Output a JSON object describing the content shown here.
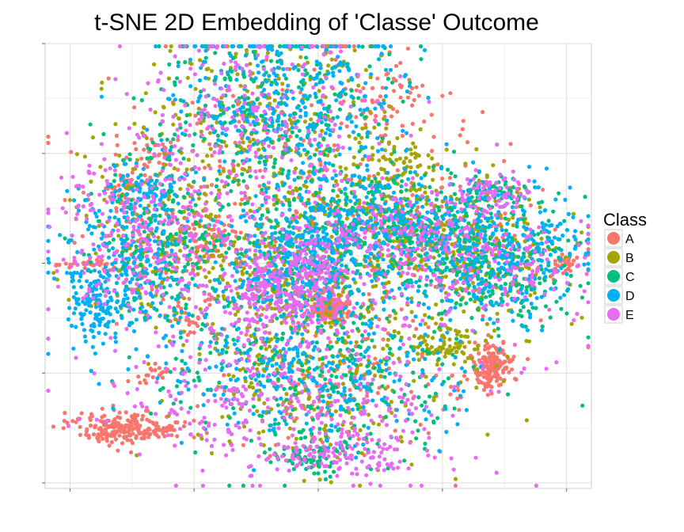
{
  "chart_data": {
    "type": "scatter",
    "title": "t-SNE 2D Embedding of 'Classe' Outcome",
    "xlabel": "",
    "ylabel": "",
    "xlim": [
      -44,
      44
    ],
    "ylim": [
      -41,
      40
    ],
    "x_major_ticks": [
      -40,
      -20,
      0,
      20,
      40
    ],
    "y_major_ticks": [
      -40,
      -20,
      0,
      20,
      40
    ],
    "grid": true,
    "legend": {
      "title": "Class",
      "position": "right",
      "entries": [
        {
          "label": "A",
          "color": "#F8766D"
        },
        {
          "label": "B",
          "color": "#A3A500"
        },
        {
          "label": "C",
          "color": "#00BF7D"
        },
        {
          "label": "D",
          "color": "#00B0F6"
        },
        {
          "label": "E",
          "color": "#E76BF3"
        }
      ]
    },
    "series": [
      {
        "name": "A",
        "color": "#F8766D",
        "clusters": [
          {
            "cx": -31,
            "cy": -30,
            "sx": 4.0,
            "sy": 1.5,
            "n": 220
          },
          {
            "cx": 2,
            "cy": -8,
            "sx": 1.4,
            "sy": 1.2,
            "n": 180
          },
          {
            "cx": 28,
            "cy": -19,
            "sx": 1.4,
            "sy": 2.0,
            "n": 150
          },
          {
            "cx": -38,
            "cy": 0,
            "sx": 2.0,
            "sy": 0.4,
            "n": 30
          },
          {
            "cx": 40,
            "cy": 0,
            "sx": 1.0,
            "sy": 1.0,
            "n": 25
          },
          {
            "cx": 11,
            "cy": 30,
            "sx": 4.0,
            "sy": 3.5,
            "n": 60
          },
          {
            "cx": -26,
            "cy": 20,
            "sx": 2.5,
            "sy": 1.5,
            "n": 30
          },
          {
            "cx": -32,
            "cy": 14,
            "sx": 1.5,
            "sy": 1.0,
            "n": 25
          },
          {
            "cx": -17,
            "cy": 5,
            "sx": 3.0,
            "sy": 3.0,
            "n": 60
          },
          {
            "cx": -20,
            "cy": -10,
            "sx": 2.0,
            "sy": 2.0,
            "n": 35
          },
          {
            "cx": 2,
            "cy": 41,
            "sx": 1.5,
            "sy": 0.5,
            "n": 25
          },
          {
            "cx": -26,
            "cy": -20,
            "sx": 2.0,
            "sy": 1.0,
            "n": 20
          },
          {
            "cx": 0,
            "cy": -20,
            "sx": 10.0,
            "sy": 8.0,
            "n": 120
          },
          {
            "cx": -5,
            "cy": 20,
            "sx": 14.0,
            "sy": 12.0,
            "n": 150
          },
          {
            "cx": 18,
            "cy": 5,
            "sx": 12.0,
            "sy": 8.0,
            "n": 120
          },
          {
            "cx": -25,
            "cy": 5,
            "sx": 8.0,
            "sy": 8.0,
            "n": 90
          },
          {
            "cx": 25,
            "cy": -20,
            "sx": 4.0,
            "sy": 3.0,
            "n": 30
          }
        ]
      },
      {
        "name": "B",
        "color": "#A3A500",
        "clusters": [
          {
            "cx": -8,
            "cy": 25,
            "sx": 10.0,
            "sy": 10.0,
            "n": 300
          },
          {
            "cx": 10,
            "cy": 7,
            "sx": 8.0,
            "sy": 5.0,
            "n": 250
          },
          {
            "cx": -25,
            "cy": 5,
            "sx": 6.0,
            "sy": 7.0,
            "n": 200
          },
          {
            "cx": 25,
            "cy": 2,
            "sx": 8.0,
            "sy": 6.0,
            "n": 250
          },
          {
            "cx": 0,
            "cy": -20,
            "sx": 12.0,
            "sy": 8.0,
            "n": 300
          },
          {
            "cx": -5,
            "cy": -2,
            "sx": 6.0,
            "sy": 5.0,
            "n": 200
          },
          {
            "cx": 20,
            "cy": -15,
            "sx": 3.0,
            "sy": 2.0,
            "n": 80
          },
          {
            "cx": 13,
            "cy": 18,
            "sx": 4.0,
            "sy": 2.0,
            "n": 60
          }
        ]
      },
      {
        "name": "C",
        "color": "#00BF7D",
        "clusters": [
          {
            "cx": -8,
            "cy": 28,
            "sx": 10.0,
            "sy": 9.0,
            "n": 280
          },
          {
            "cx": 10,
            "cy": 7,
            "sx": 8.0,
            "sy": 5.0,
            "n": 300
          },
          {
            "cx": 28,
            "cy": 0,
            "sx": 8.0,
            "sy": 6.0,
            "n": 300
          },
          {
            "cx": -25,
            "cy": 3,
            "sx": 6.0,
            "sy": 7.0,
            "n": 200
          },
          {
            "cx": 0,
            "cy": -20,
            "sx": 12.0,
            "sy": 8.0,
            "n": 300
          },
          {
            "cx": 28,
            "cy": 13,
            "sx": 3.0,
            "sy": 1.5,
            "n": 60
          },
          {
            "cx": -5,
            "cy": 0,
            "sx": 6.0,
            "sy": 5.0,
            "n": 150
          },
          {
            "cx": 0,
            "cy": -35,
            "sx": 4.0,
            "sy": 2.0,
            "n": 80
          }
        ]
      },
      {
        "name": "D",
        "color": "#00B0F6",
        "clusters": [
          {
            "cx": -5,
            "cy": 30,
            "sx": 10.0,
            "sy": 8.0,
            "n": 350
          },
          {
            "cx": 8,
            "cy": 8,
            "sx": 8.0,
            "sy": 5.0,
            "n": 250
          },
          {
            "cx": 28,
            "cy": 2,
            "sx": 8.0,
            "sy": 6.0,
            "n": 400
          },
          {
            "cx": -30,
            "cy": 0,
            "sx": 6.0,
            "sy": 8.0,
            "n": 300
          },
          {
            "cx": -3,
            "cy": 0,
            "sx": 6.0,
            "sy": 5.0,
            "n": 300
          },
          {
            "cx": 0,
            "cy": -20,
            "sx": 12.0,
            "sy": 7.0,
            "n": 300
          },
          {
            "cx": -36,
            "cy": -8,
            "sx": 2.0,
            "sy": 3.0,
            "n": 100
          },
          {
            "cx": -27,
            "cy": 13,
            "sx": 3.0,
            "sy": 2.0,
            "n": 60
          }
        ]
      },
      {
        "name": "E",
        "color": "#E76BF3",
        "clusters": [
          {
            "cx": -10,
            "cy": 25,
            "sx": 10.0,
            "sy": 9.0,
            "n": 250
          },
          {
            "cx": -5,
            "cy": -3,
            "sx": 6.0,
            "sy": 5.0,
            "n": 400
          },
          {
            "cx": -28,
            "cy": 5,
            "sx": 8.0,
            "sy": 8.0,
            "n": 300
          },
          {
            "cx": 25,
            "cy": 0,
            "sx": 9.0,
            "sy": 6.0,
            "n": 250
          },
          {
            "cx": -5,
            "cy": -25,
            "sx": 14.0,
            "sy": 7.0,
            "n": 350
          },
          {
            "cx": 5,
            "cy": -35,
            "sx": 6.0,
            "sy": 2.0,
            "n": 100
          },
          {
            "cx": 10,
            "cy": 7,
            "sx": 8.0,
            "sy": 5.0,
            "n": 150
          },
          {
            "cx": 28,
            "cy": 13,
            "sx": 3.0,
            "sy": 1.5,
            "n": 60
          }
        ]
      }
    ]
  }
}
